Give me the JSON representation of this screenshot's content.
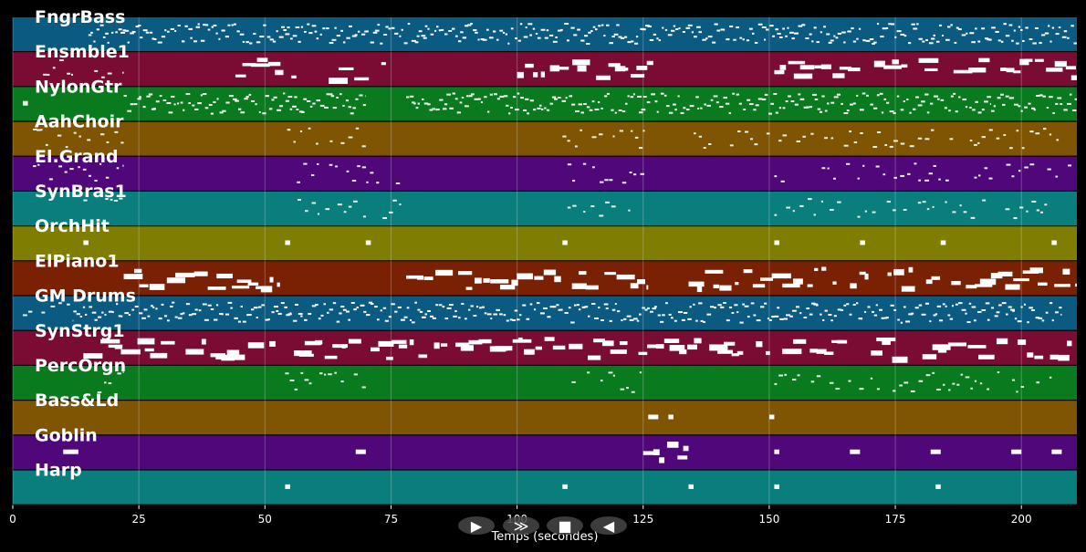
{
  "xaxis": {
    "label": "Temps (secondes)",
    "ticks": [
      0,
      25,
      50,
      75,
      100,
      125,
      150,
      175,
      200
    ],
    "range": [
      0,
      211
    ]
  },
  "tracks": [
    {
      "name": "FngrBass",
      "color": "#0b5a82"
    },
    {
      "name": "Ensmble1",
      "color": "#7a0b33"
    },
    {
      "name": "NylonGtr",
      "color": "#0a7a1f"
    },
    {
      "name": "AahChoir",
      "color": "#7f5403"
    },
    {
      "name": "El.Grand",
      "color": "#4f0779"
    },
    {
      "name": "SynBras1",
      "color": "#0a7d7d"
    },
    {
      "name": "OrchHit",
      "color": "#7f7d02"
    },
    {
      "name": "ElPiano1",
      "color": "#7a2103"
    },
    {
      "name": "GM Drums",
      "color": "#0b5a82"
    },
    {
      "name": "SynStrg1",
      "color": "#7a0b33"
    },
    {
      "name": "PercOrgn",
      "color": "#0a7a1f"
    },
    {
      "name": "Bass&Ld",
      "color": "#7f5403"
    },
    {
      "name": "Goblin",
      "color": "#4f0779"
    },
    {
      "name": "Harp",
      "color": "#0a7d7d"
    }
  ],
  "note_segments": [
    [
      [
        15,
        211,
        "dense"
      ]
    ],
    [
      [
        6,
        22,
        "sparse"
      ],
      [
        41,
        77,
        "blocks"
      ],
      [
        100,
        127,
        "blocks"
      ],
      [
        151,
        211,
        "blocks"
      ]
    ],
    [
      [
        2,
        3,
        "dot"
      ],
      [
        22,
        70,
        "dense"
      ],
      [
        78,
        194,
        "dense"
      ],
      [
        194,
        211,
        "dense"
      ]
    ],
    [
      [
        4,
        22,
        "sparse"
      ],
      [
        53,
        70,
        "sparse"
      ],
      [
        109,
        126,
        "sparse"
      ],
      [
        135,
        208,
        "sparse"
      ]
    ],
    [
      [
        4,
        22,
        "sparse"
      ],
      [
        54,
        77,
        "sparse"
      ],
      [
        110,
        126,
        "sparse"
      ],
      [
        151,
        211,
        "sparse"
      ]
    ],
    [
      [
        14,
        22,
        "sparse"
      ],
      [
        54,
        77,
        "sparse"
      ],
      [
        110,
        126,
        "sparse"
      ],
      [
        151,
        206,
        "sparse"
      ]
    ],
    [
      [
        14,
        15,
        "dot"
      ],
      [
        54,
        55,
        "dot"
      ],
      [
        70,
        71,
        "dot"
      ],
      [
        109,
        110,
        "dot"
      ],
      [
        151,
        152,
        "dot"
      ],
      [
        168,
        169,
        "dot"
      ],
      [
        184,
        185,
        "dot"
      ],
      [
        206,
        207,
        "dot"
      ]
    ],
    [
      [
        22,
        53,
        "blocks"
      ],
      [
        78,
        126,
        "blocks"
      ],
      [
        134,
        211,
        "blocks"
      ]
    ],
    [
      [
        2,
        12,
        "sparse"
      ],
      [
        12,
        208,
        "dense"
      ]
    ],
    [
      [
        14,
        210,
        "blocks"
      ]
    ],
    [
      [
        14,
        22,
        "sparse"
      ],
      [
        54,
        70,
        "sparse"
      ],
      [
        110,
        126,
        "sparse"
      ],
      [
        151,
        206,
        "sparse"
      ]
    ],
    [
      [
        126,
        128,
        "dot"
      ],
      [
        130,
        131,
        "dot"
      ],
      [
        150,
        151,
        "dot"
      ]
    ],
    [
      [
        10,
        13,
        "dot"
      ],
      [
        68,
        70,
        "dot"
      ],
      [
        125,
        134,
        "blocks"
      ],
      [
        151,
        152,
        "dot"
      ],
      [
        166,
        168,
        "dot"
      ],
      [
        182,
        184,
        "dot"
      ],
      [
        198,
        200,
        "dot"
      ],
      [
        206,
        208,
        "dot"
      ]
    ],
    [
      [
        54,
        55,
        "dot"
      ],
      [
        109,
        110,
        "dot"
      ],
      [
        134,
        135,
        "dot"
      ],
      [
        151,
        152,
        "dot"
      ],
      [
        183,
        184,
        "dot"
      ]
    ]
  ],
  "controls": [
    {
      "name": "play-button",
      "glyph": "▶"
    },
    {
      "name": "forward-button",
      "glyph": "≫"
    },
    {
      "name": "stop-button",
      "glyph": "■"
    },
    {
      "name": "rewind-button",
      "glyph": "◀"
    }
  ]
}
